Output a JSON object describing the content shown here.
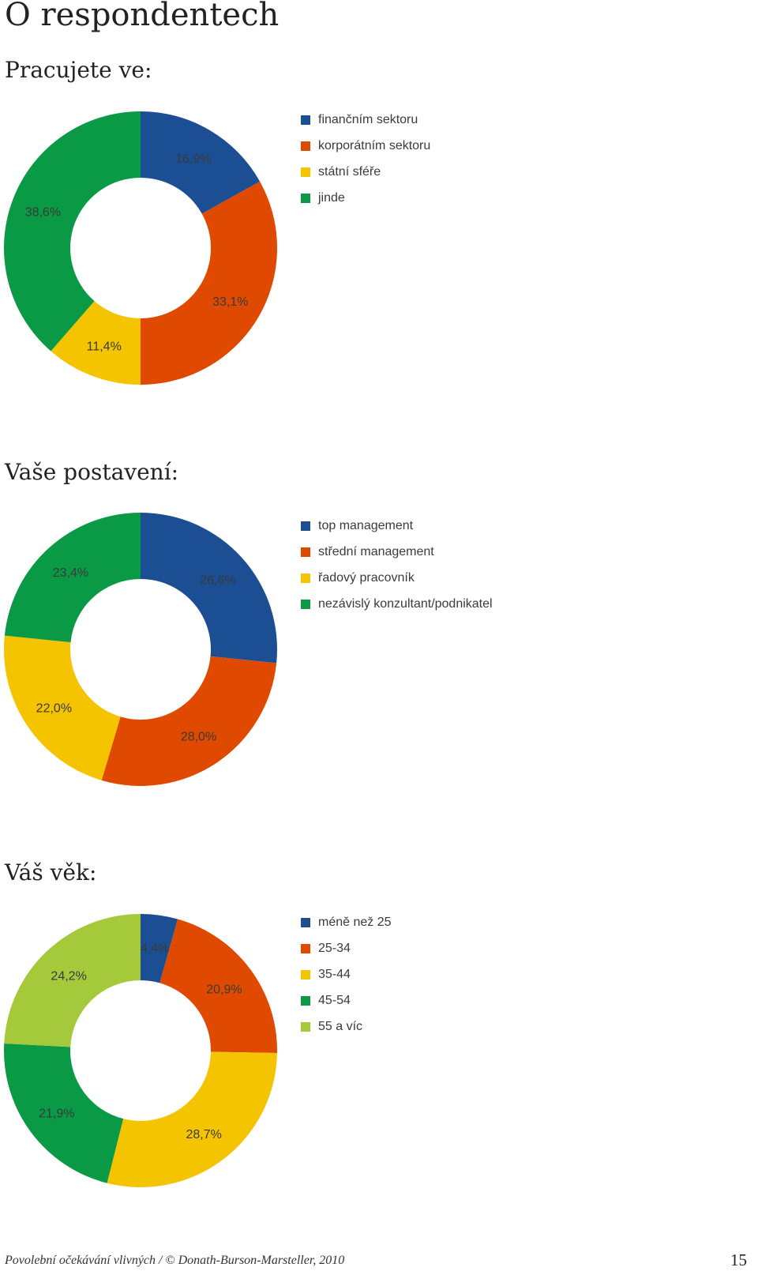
{
  "page": {
    "title": "O respondentech",
    "footer": "Povolební očekávání vlivných / © Donath-Burson-Marsteller, 2010",
    "page_number": "15"
  },
  "chart_data": [
    {
      "type": "donut",
      "title": "Pracujete ve:",
      "legend_position": "right",
      "series": [
        {
          "label": "finančním sektoru",
          "value": 16.9,
          "value_label": "16,9%",
          "color": "#1b4e93"
        },
        {
          "label": "korporátním sektoru",
          "value": 33.1,
          "value_label": "33,1%",
          "color": "#e04a00"
        },
        {
          "label": "státní sféře",
          "value": 11.4,
          "value_label": "11,4%",
          "color": "#f5c400"
        },
        {
          "label": "jinde",
          "value": 38.6,
          "value_label": "38,6%",
          "color": "#0a9a45"
        }
      ]
    },
    {
      "type": "donut",
      "title": "Vaše postavení:",
      "legend_position": "right",
      "series": [
        {
          "label": "top management",
          "value": 26.6,
          "value_label": "26,6%",
          "color": "#1b4e93"
        },
        {
          "label": "střední management",
          "value": 28.0,
          "value_label": "28,0%",
          "color": "#e04a00"
        },
        {
          "label": "řadový pracovník",
          "value": 22.0,
          "value_label": "22,0%",
          "color": "#f5c400"
        },
        {
          "label": "nezávislý konzultant/podnikatel",
          "value": 23.4,
          "value_label": "23,4%",
          "color": "#0a9a45"
        }
      ]
    },
    {
      "type": "donut",
      "title": "Váš věk:",
      "legend_position": "right",
      "series": [
        {
          "label": "méně než 25",
          "value": 4.4,
          "value_label": "4,4%",
          "color": "#1b4e93"
        },
        {
          "label": "25-34",
          "value": 20.9,
          "value_label": "20,9%",
          "color": "#e04a00"
        },
        {
          "label": "35-44",
          "value": 28.7,
          "value_label": "28,7%",
          "color": "#f5c400"
        },
        {
          "label": "45-54",
          "value": 21.9,
          "value_label": "21,9%",
          "color": "#0a9a45"
        },
        {
          "label": "55 a víc",
          "value": 24.2,
          "value_label": "24,2%",
          "color": "#a4c93a"
        }
      ]
    }
  ]
}
